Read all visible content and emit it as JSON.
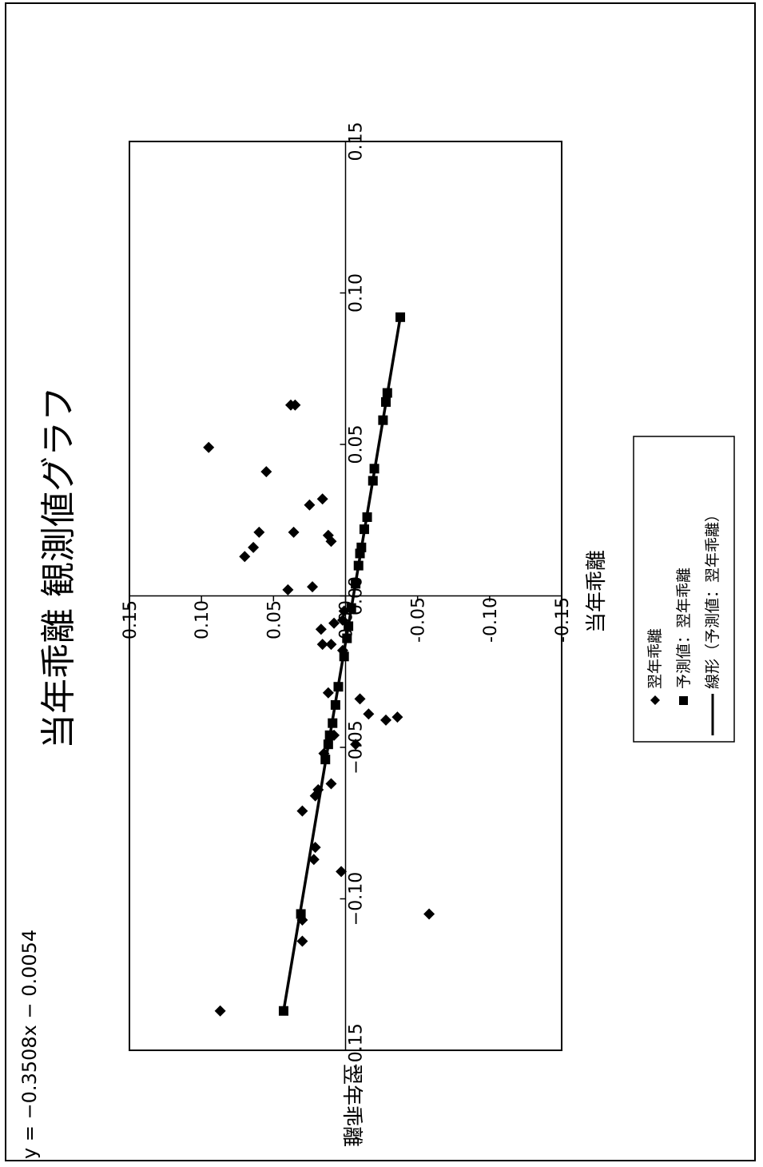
{
  "chart_data": {
    "type": "scatter",
    "title": "当年乖離 観測値グラフ",
    "xlabel": "当年乖離",
    "ylabel": "翌年乖離",
    "equation": "y = −0.3508x − 0.0054",
    "xlim": [
      -0.15,
      0.15
    ],
    "ylim": [
      -0.15,
      0.15
    ],
    "x_ticks": [
      "−0.15",
      "−0.10",
      "−0.05",
      "0.00",
      "0.05",
      "0.10",
      "0.15"
    ],
    "y_ticks": [
      "0.15",
      "0.10",
      "0.05",
      "0.00",
      "-0.05",
      "-0.10",
      "-0.15"
    ],
    "legend": [
      "翌年乖離",
      "予測値：翌年乖離",
      "線形（予測値：翌年乖離）"
    ],
    "legend_position": "right",
    "grid": false,
    "series": [
      {
        "name": "翌年乖離",
        "marker": "diamond",
        "points": [
          [
            0.063,
            0.035
          ],
          [
            0.063,
            0.038
          ],
          [
            0.049,
            0.095
          ],
          [
            0.041,
            0.055
          ],
          [
            0.021,
            0.06
          ],
          [
            0.003,
            0.023
          ],
          [
            0.013,
            0.07
          ],
          [
            0.016,
            0.064
          ],
          [
            0.002,
            0.04
          ],
          [
            0.032,
            0.016
          ],
          [
            -0.016,
            0.016
          ],
          [
            -0.016,
            0.01
          ],
          [
            -0.011,
            0.017
          ],
          [
            -0.009,
            0.008
          ],
          [
            -0.008,
            0.002
          ],
          [
            -0.032,
            0.012
          ],
          [
            -0.034,
            -0.01
          ],
          [
            -0.039,
            -0.016
          ],
          [
            -0.041,
            -0.028
          ],
          [
            -0.04,
            -0.036
          ],
          [
            -0.049,
            -0.007
          ],
          [
            -0.052,
            0.015
          ],
          [
            -0.062,
            0.01
          ],
          [
            -0.064,
            0.019
          ],
          [
            -0.046,
            0.008
          ],
          [
            -0.066,
            0.021
          ],
          [
            -0.071,
            0.03
          ],
          [
            -0.083,
            0.021
          ],
          [
            -0.087,
            0.022
          ],
          [
            -0.091,
            0.003
          ],
          [
            -0.114,
            0.03
          ],
          [
            -0.107,
            0.03
          ],
          [
            -0.105,
            -0.058
          ],
          [
            -0.137,
            0.087
          ],
          [
            0.018,
            0.01
          ],
          [
            0.02,
            0.012
          ],
          [
            0.03,
            0.025
          ],
          [
            0.021,
            0.036
          ],
          [
            -0.018,
            0.002
          ],
          [
            -0.005,
            0.001
          ]
        ]
      },
      {
        "name": "予測値：翌年乖離",
        "marker": "square",
        "points": [
          [
            0.092,
            -0.038
          ],
          [
            0.067,
            -0.029
          ],
          [
            0.064,
            -0.028
          ],
          [
            0.058,
            -0.026
          ],
          [
            0.042,
            -0.02
          ],
          [
            0.038,
            -0.019
          ],
          [
            0.026,
            -0.015
          ],
          [
            0.022,
            -0.013
          ],
          [
            0.016,
            -0.011
          ],
          [
            0.014,
            -0.01
          ],
          [
            0.01,
            -0.009
          ],
          [
            0.004,
            -0.007
          ],
          [
            -0.004,
            -0.004
          ],
          [
            -0.01,
            -0.002
          ],
          [
            -0.014,
            -0.001
          ],
          [
            -0.02,
            0.001
          ],
          [
            -0.03,
            0.005
          ],
          [
            -0.036,
            0.007
          ],
          [
            -0.042,
            0.009
          ],
          [
            -0.046,
            0.011
          ],
          [
            -0.049,
            0.012
          ],
          [
            -0.054,
            0.014
          ],
          [
            -0.105,
            0.031
          ],
          [
            -0.137,
            0.043
          ]
        ]
      },
      {
        "name": "線形（予測値：翌年乖離）",
        "marker": "line",
        "points": [
          [
            0.092,
            -0.038
          ],
          [
            -0.137,
            0.043
          ]
        ]
      }
    ]
  }
}
